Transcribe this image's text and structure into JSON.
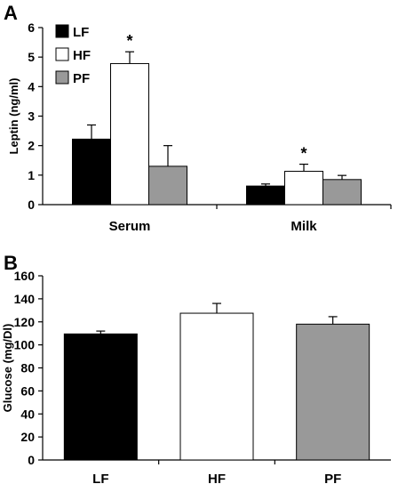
{
  "chart_data": [
    {
      "panel_label": "A",
      "type": "bar",
      "categories": [
        "Serum",
        "Milk"
      ],
      "series": [
        {
          "name": "LF",
          "color": "#000000",
          "values": [
            2.22,
            0.63
          ],
          "errors": [
            0.48,
            0.07
          ]
        },
        {
          "name": "HF",
          "color": "#ffffff",
          "values": [
            4.78,
            1.13
          ],
          "errors": [
            0.4,
            0.24
          ]
        },
        {
          "name": "PF",
          "color": "#999999",
          "values": [
            1.3,
            0.85
          ],
          "errors": [
            0.7,
            0.14
          ]
        }
      ],
      "annotations": [
        {
          "text": "*",
          "category": "Serum",
          "series": "HF"
        },
        {
          "text": "*",
          "category": "Milk",
          "series": "HF"
        }
      ],
      "xlabel": "",
      "ylabel": "Leptin (ng/ml)",
      "ylim": [
        0,
        6
      ],
      "yticks": [
        0,
        1,
        2,
        3,
        4,
        5,
        6
      ],
      "grid": false,
      "legend_placement": "top-left"
    },
    {
      "panel_label": "B",
      "type": "bar",
      "categories": [
        "LF",
        "HF",
        "PF"
      ],
      "values": [
        109.5,
        127.5,
        118
      ],
      "errors": [
        2.5,
        8.5,
        6.5
      ],
      "colors": [
        "#000000",
        "#ffffff",
        "#999999"
      ],
      "xlabel": "",
      "ylabel": "Glucose (mg/Dl)",
      "ylim": [
        0,
        160
      ],
      "yticks": [
        0,
        20,
        40,
        60,
        80,
        100,
        120,
        140,
        160
      ],
      "grid": false
    }
  ]
}
